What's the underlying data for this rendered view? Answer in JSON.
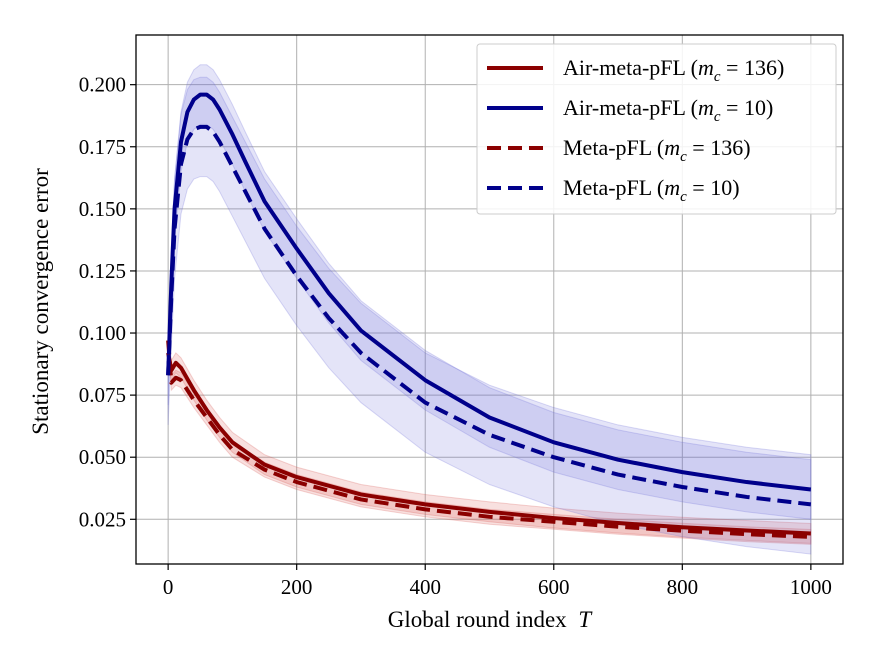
{
  "chart_data": {
    "type": "line",
    "title": "",
    "xlabel": "Global round index",
    "xlabel_var": "T",
    "ylabel": "Stationary convergence error",
    "xlim": [
      -50,
      1050
    ],
    "ylim": [
      0.007,
      0.22
    ],
    "xticks": [
      0,
      200,
      400,
      600,
      800,
      1000
    ],
    "xtick_labels": [
      "0",
      "200",
      "400",
      "600",
      "800",
      "1000"
    ],
    "yticks": [
      0.025,
      0.05,
      0.075,
      0.1,
      0.125,
      0.15,
      0.175,
      0.2
    ],
    "ytick_labels": [
      "0.025",
      "0.050",
      "0.075",
      "0.100",
      "0.125",
      "0.150",
      "0.175",
      "0.200"
    ],
    "grid": true,
    "legend_position": "top-right",
    "series": [
      {
        "name": "Air-meta-pFL (m_c = 136)",
        "legend_prefix": "Air-meta-pFL (",
        "legend_var": "m",
        "legend_sub": "c",
        "legend_value": " = 136)",
        "color": "#8b0000",
        "dash": "solid",
        "x": [
          0,
          5,
          12,
          20,
          40,
          60,
          80,
          100,
          150,
          200,
          300,
          400,
          500,
          600,
          700,
          800,
          900,
          1000
        ],
        "y": [
          0.092,
          0.085,
          0.088,
          0.086,
          0.077,
          0.069,
          0.062,
          0.056,
          0.047,
          0.042,
          0.035,
          0.031,
          0.028,
          0.0255,
          0.0235,
          0.0218,
          0.0205,
          0.0193
        ],
        "band": 0.004
      },
      {
        "name": "Air-meta-pFL (m_c = 10)",
        "legend_prefix": "Air-meta-pFL (",
        "legend_var": "m",
        "legend_sub": "c",
        "legend_value": " = 10)",
        "color": "#00008b",
        "dash": "solid",
        "x": [
          0,
          5,
          10,
          20,
          30,
          40,
          50,
          60,
          70,
          80,
          100,
          120,
          150,
          200,
          250,
          300,
          400,
          500,
          600,
          700,
          800,
          900,
          1000
        ],
        "y": [
          0.083,
          0.12,
          0.15,
          0.177,
          0.189,
          0.194,
          0.196,
          0.196,
          0.194,
          0.19,
          0.18,
          0.169,
          0.153,
          0.134,
          0.116,
          0.101,
          0.081,
          0.066,
          0.056,
          0.049,
          0.044,
          0.04,
          0.037
        ],
        "band": 0.012
      },
      {
        "name": "Meta-pFL (m_c = 136)",
        "legend_prefix": "Meta-pFL (",
        "legend_var": "m",
        "legend_sub": "c",
        "legend_value": " = 136)",
        "color": "#8b0000",
        "dash": "dashed",
        "x": [
          0,
          5,
          12,
          20,
          40,
          60,
          80,
          100,
          150,
          200,
          300,
          400,
          500,
          600,
          700,
          800,
          900,
          1000
        ],
        "y": [
          0.097,
          0.08,
          0.082,
          0.081,
          0.073,
          0.066,
          0.059,
          0.053,
          0.045,
          0.04,
          0.033,
          0.029,
          0.026,
          0.024,
          0.022,
          0.0204,
          0.019,
          0.0179
        ],
        "band": 0.003
      },
      {
        "name": "Meta-pFL (m_c = 10)",
        "legend_prefix": "Meta-pFL (",
        "legend_var": "m",
        "legend_sub": "c",
        "legend_value": " = 10)",
        "color": "#00008b",
        "dash": "dashed",
        "x": [
          0,
          5,
          10,
          20,
          30,
          40,
          50,
          60,
          70,
          80,
          100,
          120,
          150,
          200,
          250,
          300,
          400,
          500,
          600,
          700,
          800,
          900,
          1000
        ],
        "y": [
          0.083,
          0.115,
          0.142,
          0.168,
          0.178,
          0.182,
          0.183,
          0.183,
          0.181,
          0.177,
          0.167,
          0.157,
          0.142,
          0.123,
          0.106,
          0.092,
          0.072,
          0.059,
          0.05,
          0.043,
          0.038,
          0.034,
          0.031
        ],
        "band": 0.02
      }
    ]
  }
}
